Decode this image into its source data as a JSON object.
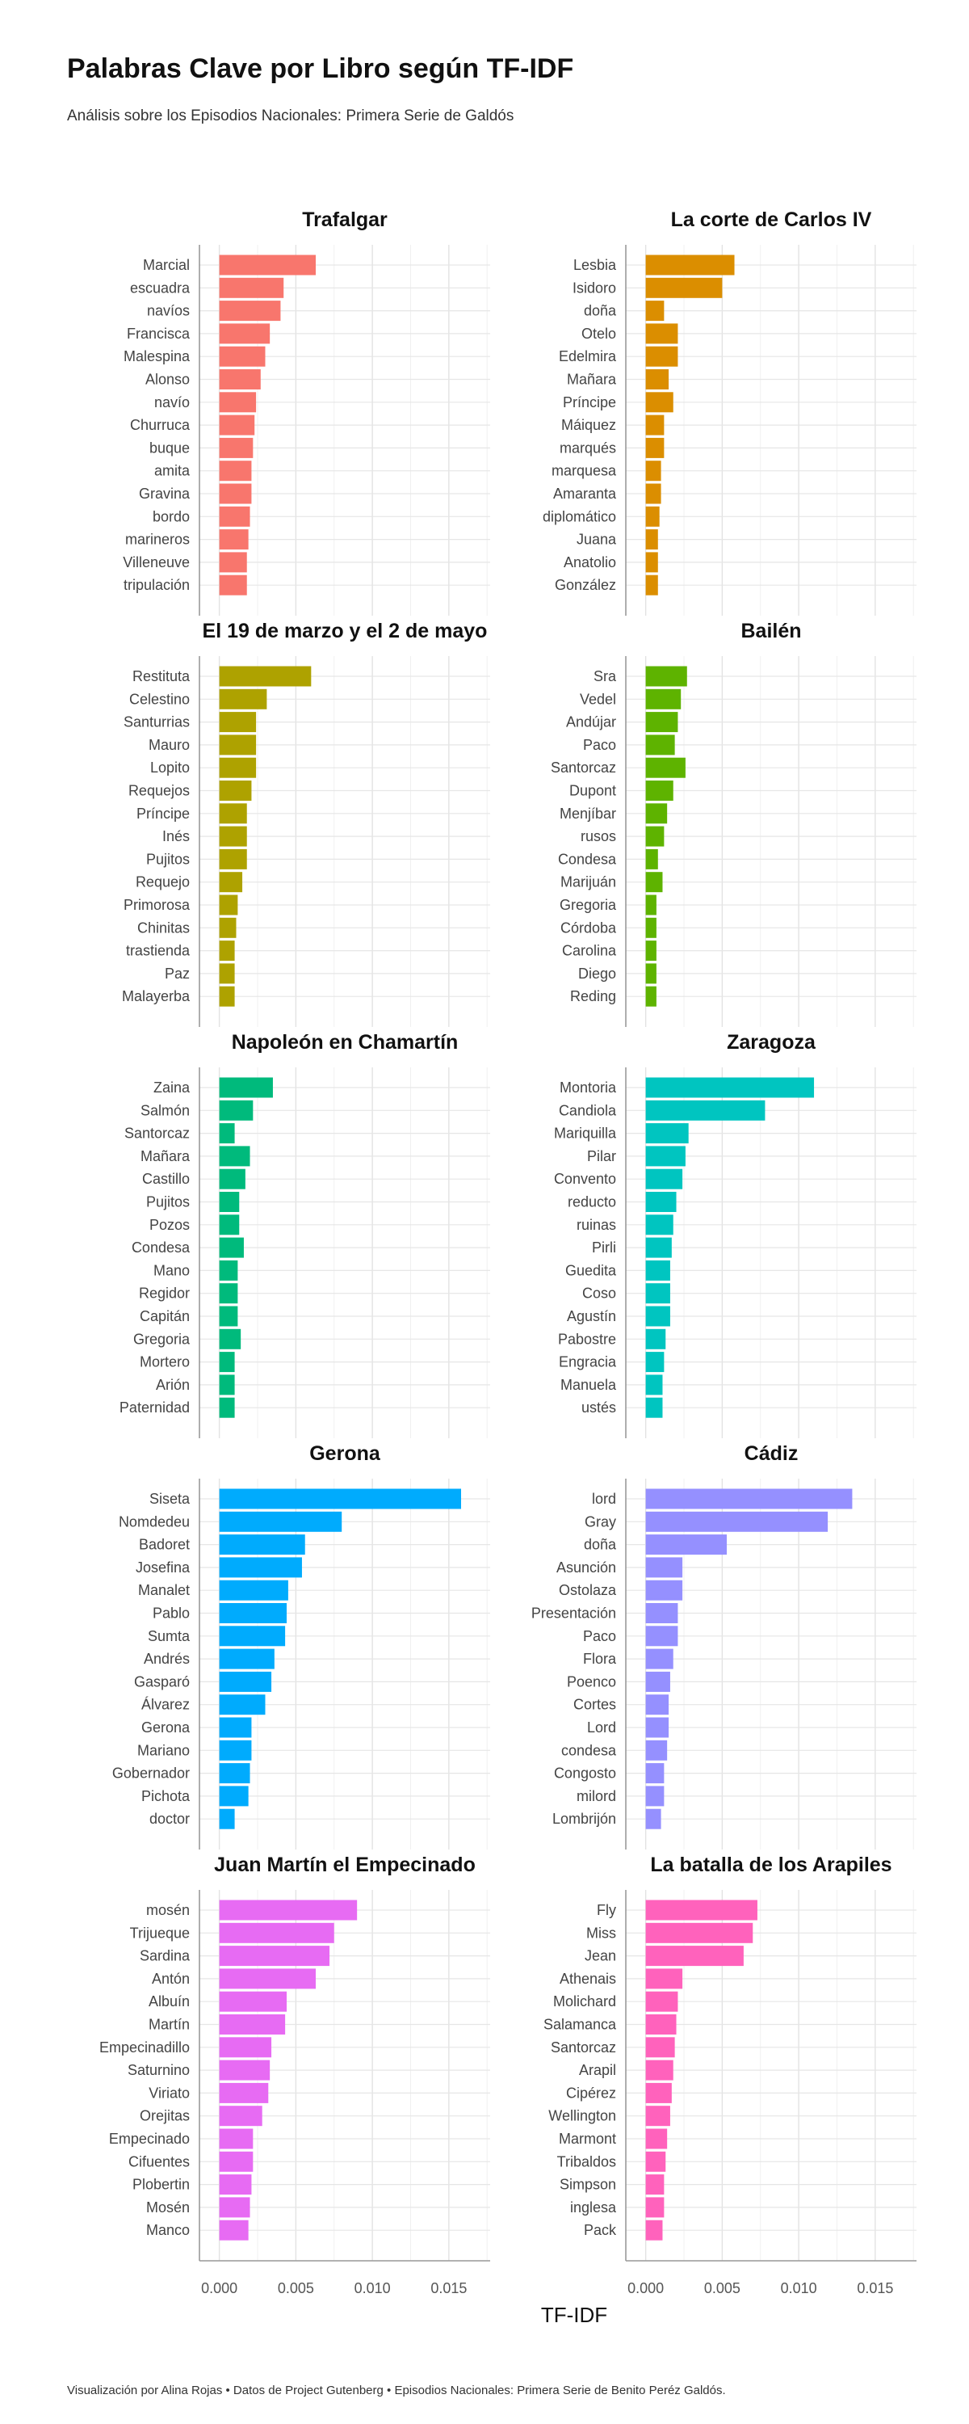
{
  "title": "Palabras Clave por Libro según TF-IDF",
  "subtitle": "Análisis sobre los Episodios Nacionales: Primera Serie de Galdós",
  "caption": "Visualización por Alina Rojas  •  Datos de Project Gutenberg  •  Episodios Nacionales: Primera Serie de Benito Peréz Galdós.",
  "chart_data": {
    "type": "bar",
    "orientation": "horizontal",
    "faceted": true,
    "xlabel": "TF-IDF",
    "xlim": [
      -0.0013,
      0.0177
    ],
    "xticks": [
      0.0,
      0.005,
      0.01,
      0.015
    ],
    "xtick_labels": [
      "0.000",
      "0.005",
      "0.010",
      "0.015"
    ],
    "grid": true,
    "legend": "none",
    "facets": [
      {
        "name": "Trafalgar",
        "color": "#F8766D",
        "categories": [
          "Marcial",
          "escuadra",
          "navíos",
          "Francisca",
          "Malespina",
          "Alonso",
          "navío",
          "Churruca",
          "buque",
          "amita",
          "Gravina",
          "bordo",
          "marineros",
          "Villeneuve",
          "tripulación"
        ],
        "values": [
          0.0063,
          0.0042,
          0.004,
          0.0033,
          0.003,
          0.0027,
          0.0024,
          0.0023,
          0.0022,
          0.0021,
          0.0021,
          0.002,
          0.0019,
          0.0018,
          0.0018
        ]
      },
      {
        "name": "La corte de Carlos IV",
        "color": "#DB8E00",
        "categories": [
          "Lesbia",
          "Isidoro",
          "doña",
          "Otelo",
          "Edelmira",
          "Mañara",
          "Príncipe",
          "Máiquez",
          "marqués",
          "marquesa",
          "Amaranta",
          "diplomático",
          "Juana",
          "Anatolio",
          "González"
        ],
        "values": [
          0.0058,
          0.005,
          0.0012,
          0.0021,
          0.0021,
          0.0015,
          0.0018,
          0.0012,
          0.0012,
          0.001,
          0.001,
          0.0009,
          0.0008,
          0.0008,
          0.0008
        ]
      },
      {
        "name": "El 19 de marzo y el 2 de mayo",
        "color": "#AEA200",
        "categories": [
          "Restituta",
          "Celestino",
          "Santurrias",
          "Mauro",
          "Lopito",
          "Requejos",
          "Príncipe",
          "Inés",
          "Pujitos",
          "Requejo",
          "Primorosa",
          "Chinitas",
          "trastienda",
          "Paz",
          "Malayerba"
        ],
        "values": [
          0.006,
          0.0031,
          0.0024,
          0.0024,
          0.0024,
          0.0021,
          0.0018,
          0.0018,
          0.0018,
          0.0015,
          0.0012,
          0.0011,
          0.001,
          0.001,
          0.001
        ]
      },
      {
        "name": "Bailén",
        "color": "#5EB300",
        "categories": [
          "Sra",
          "Vedel",
          "Andújar",
          "Paco",
          "Santorcaz",
          "Dupont",
          "Menjíbar",
          "rusos",
          "Condesa",
          "Marijuán",
          "Gregoria",
          "Córdoba",
          "Carolina",
          "Diego",
          "Reding"
        ],
        "values": [
          0.0027,
          0.0023,
          0.0021,
          0.0019,
          0.0026,
          0.0018,
          0.0014,
          0.0012,
          0.0008,
          0.0011,
          0.0007,
          0.0007,
          0.0007,
          0.0007,
          0.0007
        ]
      },
      {
        "name": "Napoleón en Chamartín",
        "color": "#00BA7C",
        "categories": [
          "Zaina",
          "Salmón",
          "Santorcaz",
          "Mañara",
          "Castillo",
          "Pujitos",
          "Pozos",
          "Condesa",
          "Mano",
          "Regidor",
          "Capitán",
          "Gregoria",
          "Mortero",
          "Arión",
          "Paternidad"
        ],
        "values": [
          0.0035,
          0.0022,
          0.001,
          0.002,
          0.0017,
          0.0013,
          0.0013,
          0.0016,
          0.0012,
          0.0012,
          0.0012,
          0.0014,
          0.001,
          0.001,
          0.001
        ]
      },
      {
        "name": "Zaragoza",
        "color": "#00C5C0",
        "categories": [
          "Montoria",
          "Candiola",
          "Mariquilla",
          "Pilar",
          "Convento",
          "reducto",
          "ruinas",
          "Pirli",
          "Guedita",
          "Coso",
          "Agustín",
          "Pabostre",
          "Engracia",
          "Manuela",
          "ustés"
        ],
        "values": [
          0.011,
          0.0078,
          0.0028,
          0.0026,
          0.0024,
          0.002,
          0.0018,
          0.0017,
          0.0016,
          0.0016,
          0.0016,
          0.0013,
          0.0012,
          0.0011,
          0.0011
        ]
      },
      {
        "name": "Gerona",
        "color": "#00ABFD",
        "categories": [
          "Siseta",
          "Nomdedeu",
          "Badoret",
          "Josefina",
          "Manalet",
          "Pablo",
          "Sumta",
          "Andrés",
          "Gasparó",
          "Álvarez",
          "Gerona",
          "Mariano",
          "Gobernador",
          "Pichota",
          "doctor"
        ],
        "values": [
          0.0158,
          0.008,
          0.0056,
          0.0054,
          0.0045,
          0.0044,
          0.0043,
          0.0036,
          0.0034,
          0.003,
          0.0021,
          0.0021,
          0.002,
          0.0019,
          0.001
        ]
      },
      {
        "name": "Cádiz",
        "color": "#9590FF",
        "categories": [
          "lord",
          "Gray",
          "doña",
          "Asunción",
          "Ostolaza",
          "Presentación",
          "Paco",
          "Flora",
          "Poenco",
          "Cortes",
          "Lord",
          "condesa",
          "Congosto",
          "milord",
          "Lombrijón"
        ],
        "values": [
          0.0135,
          0.0119,
          0.0053,
          0.0024,
          0.0024,
          0.0021,
          0.0021,
          0.0018,
          0.0016,
          0.0015,
          0.0015,
          0.0014,
          0.0012,
          0.0012,
          0.001
        ]
      },
      {
        "name": "Juan Martín el Empecinado",
        "color": "#E76BF3",
        "categories": [
          "mosén",
          "Trijueque",
          "Sardina",
          "Antón",
          "Albuín",
          "Martín",
          "Empecinadillo",
          "Saturnino",
          "Viriato",
          "Orejitas",
          "Empecinado",
          "Cifuentes",
          "Plobertin",
          "Mosén",
          "Manco"
        ],
        "values": [
          0.009,
          0.0075,
          0.0072,
          0.0063,
          0.0044,
          0.0043,
          0.0034,
          0.0033,
          0.0032,
          0.0028,
          0.0022,
          0.0022,
          0.0021,
          0.002,
          0.0019
        ]
      },
      {
        "name": "La batalla de los Arapiles",
        "color": "#FF62BC",
        "categories": [
          "Fly",
          "Miss",
          "Jean",
          "Athenais",
          "Molichard",
          "Salamanca",
          "Santorcaz",
          "Arapil",
          "Cipérez",
          "Wellington",
          "Marmont",
          "Tribaldos",
          "Simpson",
          "inglesa",
          "Pack"
        ],
        "values": [
          0.0073,
          0.007,
          0.0064,
          0.0024,
          0.0021,
          0.002,
          0.0019,
          0.0018,
          0.0017,
          0.0016,
          0.0014,
          0.0013,
          0.0012,
          0.0012,
          0.0011
        ]
      }
    ]
  }
}
